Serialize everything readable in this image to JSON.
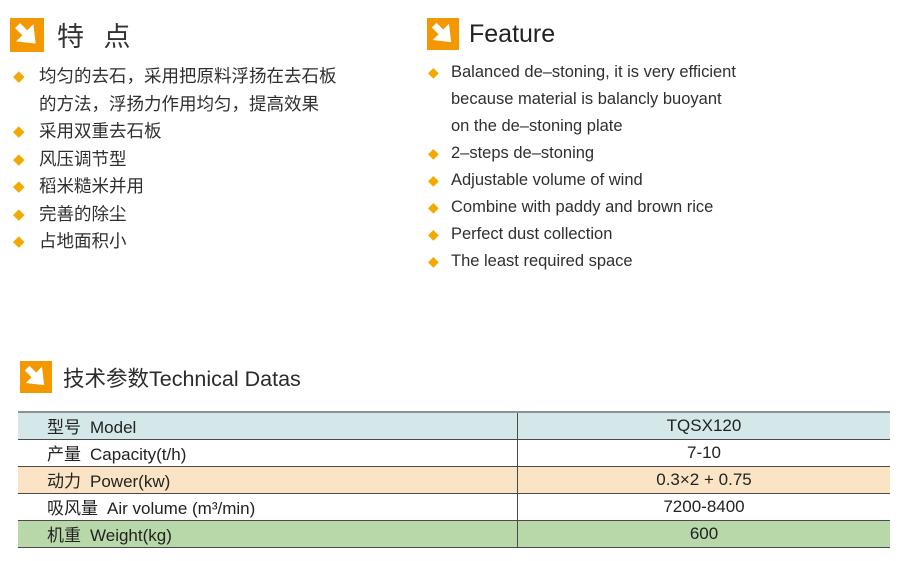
{
  "colors": {
    "accent_orange": "#F39800",
    "bullet": "#F2A900",
    "row_blue": "#D5E8E9",
    "row_peach": "#FBE4C5",
    "row_green": "#B9D8A9"
  },
  "sections": {
    "features_cn": {
      "title": "特 点",
      "items": [
        "均匀的去石，采用把原料浮扬在去石板\n的方法，浮扬力作用均匀，提高效果",
        "采用双重去石板",
        "风压调节型",
        "稻米糙米并用",
        "完善的除尘",
        "占地面积小"
      ]
    },
    "features_en": {
      "title": "Feature",
      "items": [
        "Balanced de–stoning, it is very efficient\nbecause material is balancly buoyant\non the de–stoning plate",
        "2–steps de–stoning",
        "Adjustable volume of wind",
        "Combine with paddy and brown rice",
        "Perfect dust collection",
        "The least required space"
      ]
    },
    "technical": {
      "title": "技术参数Technical Datas",
      "table": {
        "rows": [
          {
            "label_cn": "型号",
            "label_en": "Model",
            "value": "TQSX120",
            "tint": "blue"
          },
          {
            "label_cn": "产量",
            "label_en": "Capacity(t/h)",
            "value": "7-10",
            "tint": "none"
          },
          {
            "label_cn": "动力",
            "label_en": "Power(kw)",
            "value": "0.3×2 + 0.75",
            "tint": "peach"
          },
          {
            "label_cn": "吸风量",
            "label_en": "Air volume (m³/min)",
            "value": "7200-8400",
            "tint": "none"
          },
          {
            "label_cn": "机重",
            "label_en": "Weight(kg)",
            "value": "600",
            "tint": "green"
          }
        ]
      }
    }
  }
}
